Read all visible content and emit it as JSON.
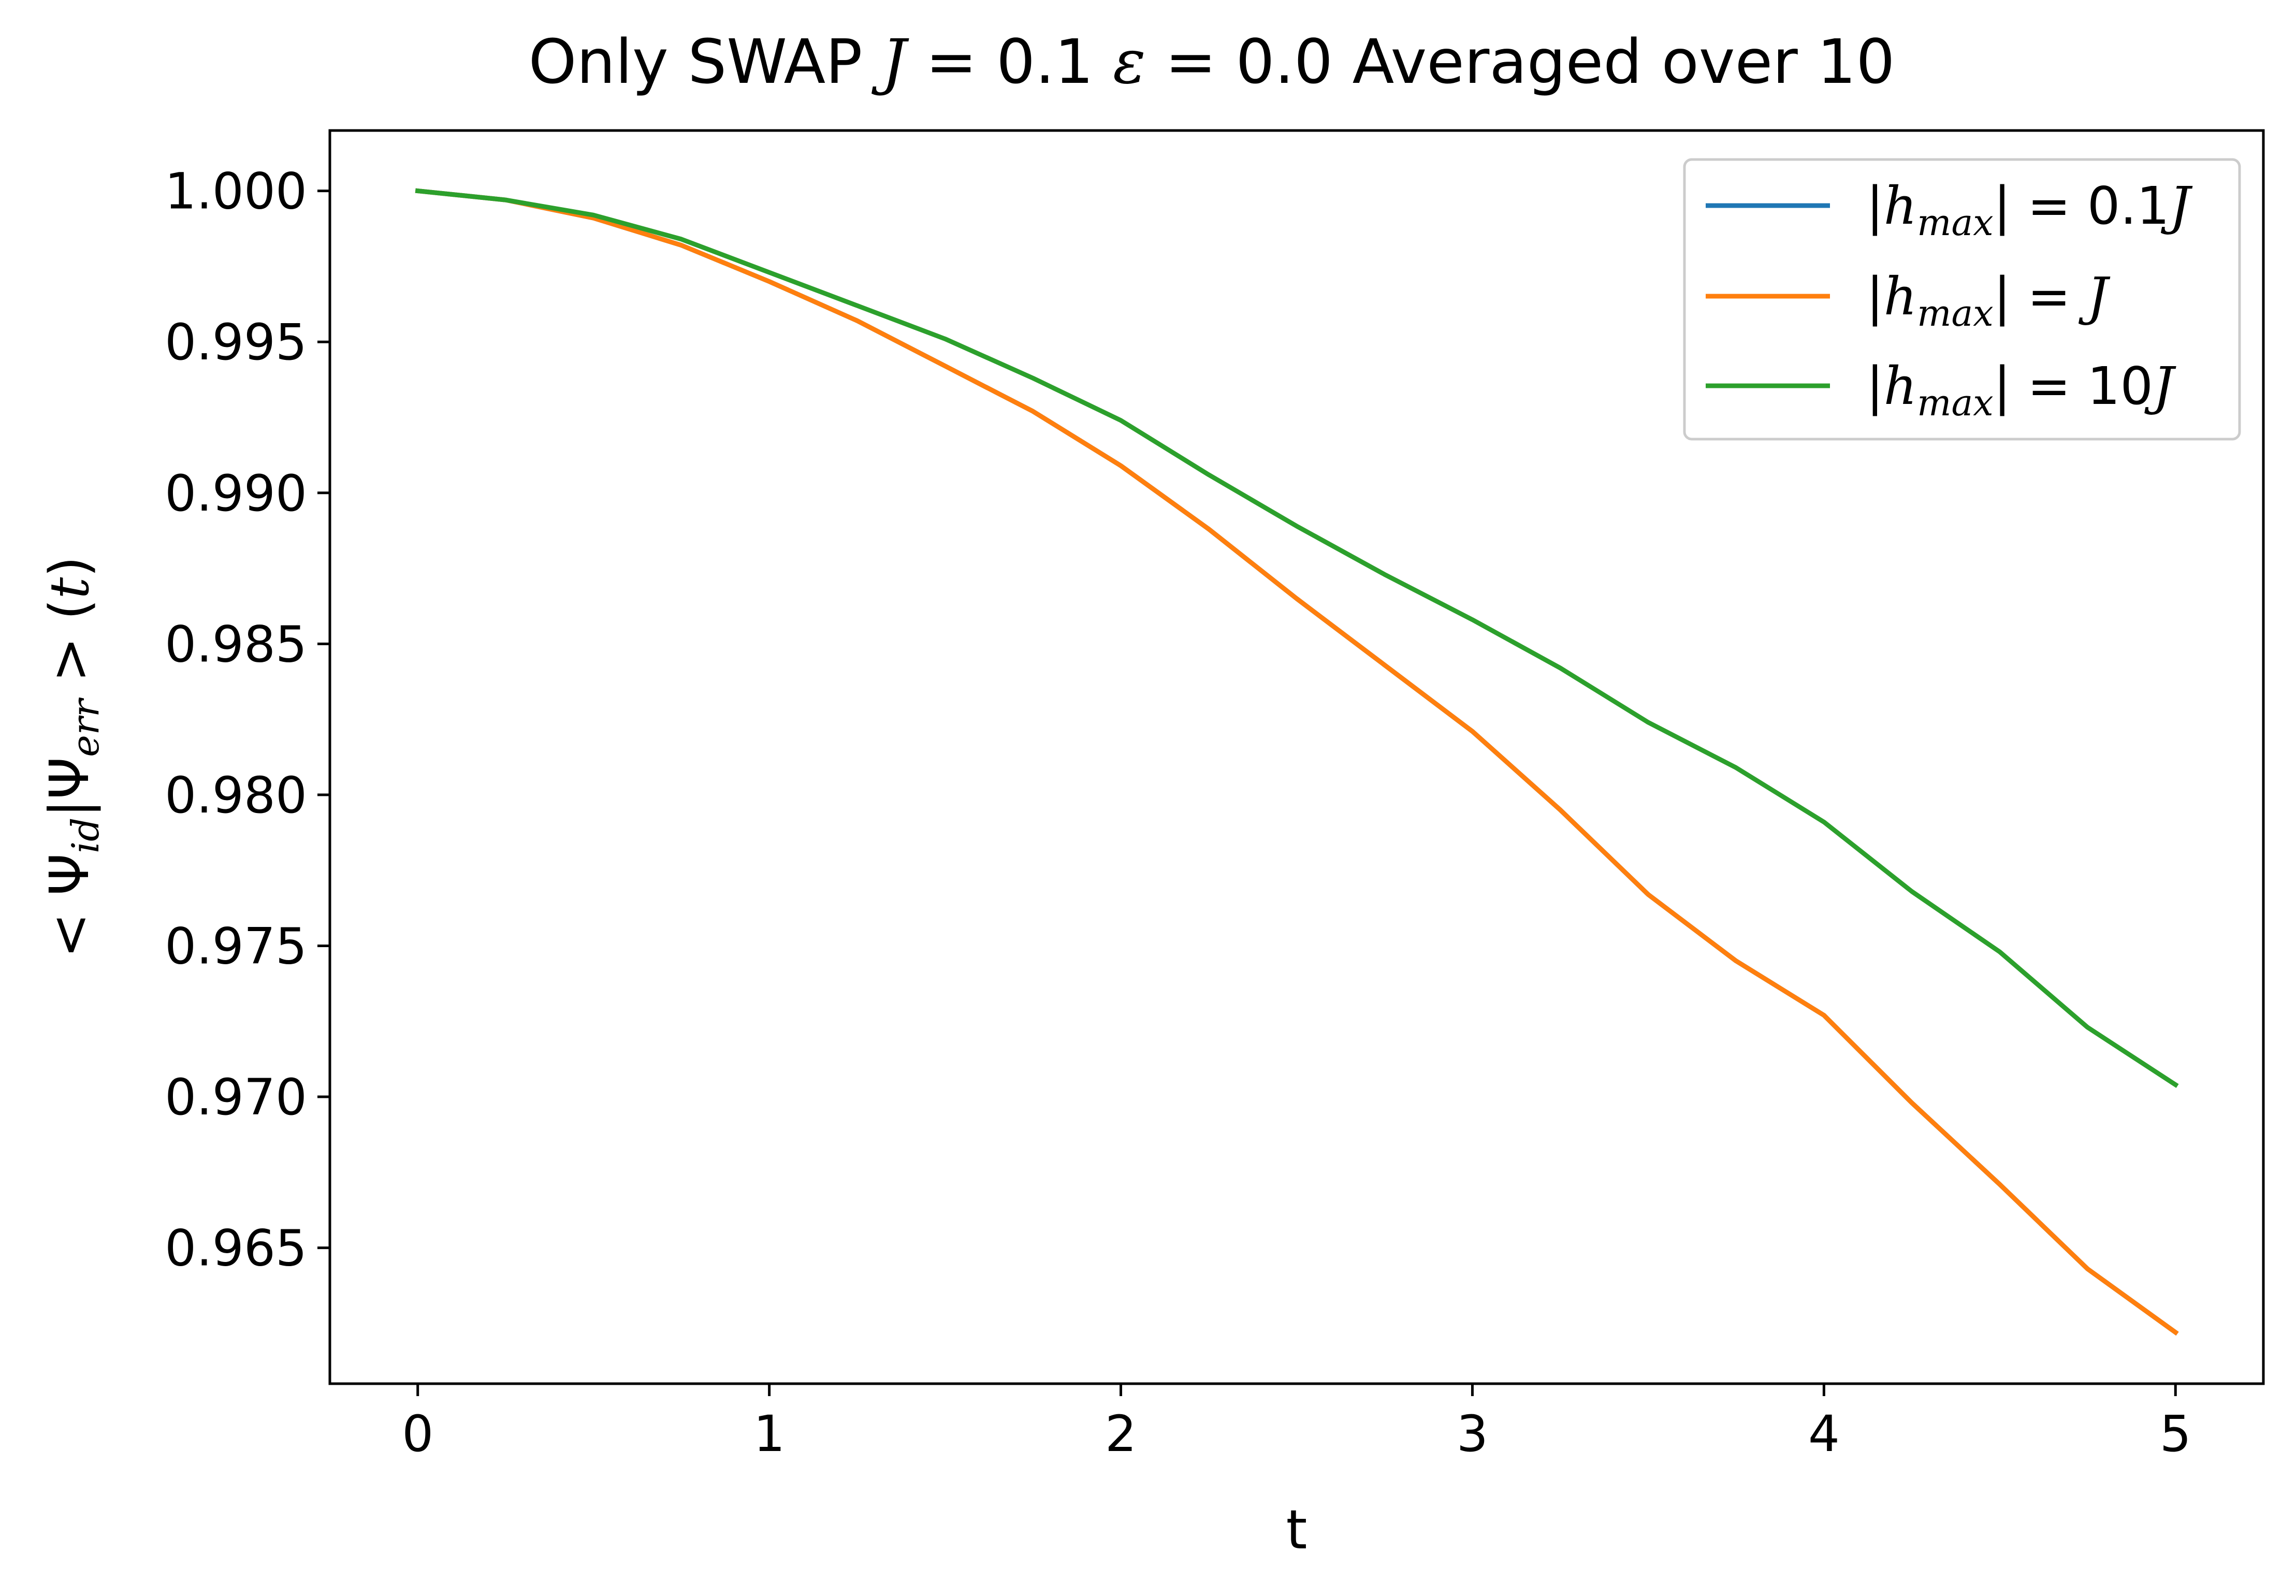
{
  "chart_data": {
    "type": "line",
    "title": {
      "prefix": "Only SWAP  ",
      "j_sym": "J",
      "j_eq": " = 0.1  ",
      "eps_sym": "ε",
      "eps_eq": " = 0.0  ",
      "suffix": "Averaged over 10"
    },
    "xlabel": "t",
    "ylabel": {
      "a": "< Ψ",
      "a_sub": "id",
      "b": "|Ψ",
      "b_sub": "err",
      "c": " > (",
      "c_t": "t",
      "d": ")"
    },
    "xlim": [
      -0.25,
      5.25
    ],
    "ylim": [
      0.9605,
      1.002
    ],
    "xticks": [
      0,
      1,
      2,
      3,
      4,
      5
    ],
    "xtick_labels": [
      "0",
      "1",
      "2",
      "3",
      "4",
      "5"
    ],
    "yticks": [
      1.0,
      0.995,
      0.99,
      0.985,
      0.98,
      0.975,
      0.97,
      0.965
    ],
    "ytick_labels": [
      "1.000",
      "0.995",
      "0.990",
      "0.985",
      "0.980",
      "0.975",
      "0.970",
      "0.965"
    ],
    "grid": false,
    "legend_position": "top-right",
    "series": [
      {
        "name": "|h_max| = 0.1J",
        "legend": {
          "pre": "|",
          "h": "h",
          "sub": "max",
          "post": "| = 0.1",
          "j": "J"
        },
        "color": "#1f77b4",
        "x": [
          0,
          0.25,
          0.5,
          0.75,
          1.0,
          1.25,
          1.5,
          1.75,
          2.0,
          2.25,
          2.5,
          2.75,
          3.0,
          3.25,
          3.5,
          3.75,
          4.0,
          4.25,
          4.5,
          4.75,
          5.0
        ],
        "y": [
          1.0,
          0.9997,
          0.9991,
          0.9982,
          0.997,
          0.9957,
          0.9942,
          0.9927,
          0.9909,
          0.9888,
          0.9865,
          0.9843,
          0.9821,
          0.9795,
          0.9767,
          0.9745,
          0.9727,
          0.9698,
          0.9671,
          0.9643,
          0.9622
        ]
      },
      {
        "name": "|h_max| = J",
        "legend": {
          "pre": " |",
          "h": "h",
          "sub": "max",
          "post": "| = ",
          "j": "J"
        },
        "color": "#ff7f0e",
        "x": [
          0,
          0.25,
          0.5,
          0.75,
          1.0,
          1.25,
          1.5,
          1.75,
          2.0,
          2.25,
          2.5,
          2.75,
          3.0,
          3.25,
          3.5,
          3.75,
          4.0,
          4.25,
          4.5,
          4.75,
          5.0
        ],
        "y": [
          1.0,
          0.9997,
          0.9991,
          0.9982,
          0.997,
          0.9957,
          0.9942,
          0.9927,
          0.9909,
          0.9888,
          0.9865,
          0.9843,
          0.9821,
          0.9795,
          0.9767,
          0.9745,
          0.9727,
          0.9698,
          0.9671,
          0.9643,
          0.9622
        ]
      },
      {
        "name": "|h_max| = 10J",
        "legend": {
          "pre": " |",
          "h": "h",
          "sub": "max",
          "post": "| = 10",
          "j": "J"
        },
        "color": "#2ca02c",
        "x": [
          0,
          0.25,
          0.5,
          0.75,
          1.0,
          1.25,
          1.5,
          1.75,
          2.0,
          2.25,
          2.5,
          2.75,
          3.0,
          3.25,
          3.5,
          3.75,
          4.0,
          4.25,
          4.5,
          4.75,
          5.0
        ],
        "y": [
          1.0,
          0.9997,
          0.9992,
          0.9984,
          0.9973,
          0.9962,
          0.9951,
          0.9938,
          0.9924,
          0.9906,
          0.9889,
          0.9873,
          0.9858,
          0.9842,
          0.9824,
          0.9809,
          0.9791,
          0.9768,
          0.9748,
          0.9723,
          0.9704
        ]
      }
    ]
  }
}
